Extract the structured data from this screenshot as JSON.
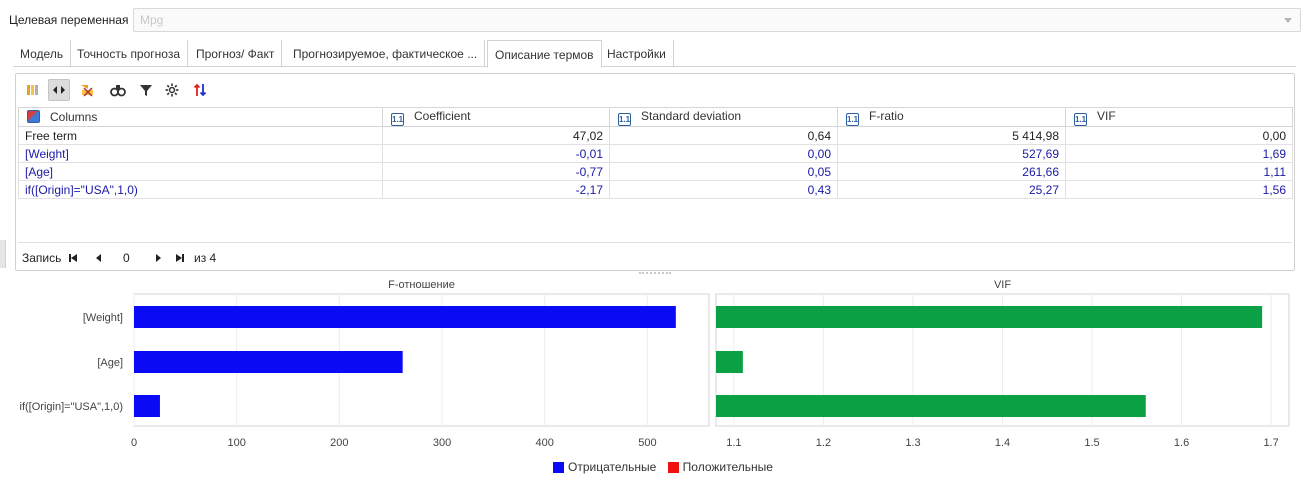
{
  "target": {
    "label": "Целевая переменная",
    "value": "Mpg"
  },
  "tabs": [
    {
      "label": "Модель",
      "active": false
    },
    {
      "label": "Точность прогноза",
      "active": false
    },
    {
      "label": "Прогноз/ Факт",
      "active": false
    },
    {
      "label": "Прогнозируемое, фактическое ...",
      "active": false
    },
    {
      "label": "Описание термов",
      "active": true
    },
    {
      "label": "Настройки",
      "active": false
    }
  ],
  "toolbar": {
    "icons": [
      "columns-icon",
      "fit-width-icon",
      "clear-filter-icon",
      "find-icon",
      "filter-icon",
      "settings-icon",
      "sort-icon"
    ]
  },
  "table": {
    "headers": [
      "Columns",
      "Coefficient",
      "Standard deviation",
      "F-ratio",
      "VIF"
    ],
    "header_badge": "1.1",
    "rows": [
      {
        "name": "Free term",
        "coefficient": "47,02",
        "std": "0,64",
        "f_ratio": "5 414,98",
        "vif": "0,00"
      },
      {
        "name": "[Weight]",
        "coefficient": "-0,01",
        "std": "0,00",
        "f_ratio": "527,69",
        "vif": "1,69"
      },
      {
        "name": "[Age]",
        "coefficient": "-0,77",
        "std": "0,05",
        "f_ratio": "261,66",
        "vif": "1,11"
      },
      {
        "name": "if([Origin]=\"USA\",1,0)",
        "coefficient": "-2,17",
        "std": "0,43",
        "f_ratio": "25,27",
        "vif": "1,56"
      }
    ]
  },
  "pager": {
    "label": "Запись",
    "current": "0",
    "of_label": "из 4"
  },
  "chart_data": [
    {
      "type": "bar",
      "orientation": "horizontal",
      "title": "F-отношение",
      "categories": [
        "[Weight]",
        "[Age]",
        "if([Origin]=\"USA\",1,0)"
      ],
      "values": [
        527.69,
        261.66,
        25.27
      ],
      "xlim": [
        0,
        560
      ],
      "ticks": [
        0,
        100,
        200,
        300,
        400,
        500
      ],
      "color": "#0a0af5",
      "grid": true
    },
    {
      "type": "bar",
      "orientation": "horizontal",
      "title": "VIF",
      "categories": [
        "[Weight]",
        "[Age]",
        "if([Origin]=\"USA\",1,0)"
      ],
      "values": [
        1.69,
        1.11,
        1.56
      ],
      "xlim": [
        1.08,
        1.72
      ],
      "ticks": [
        1.1,
        1.2,
        1.3,
        1.4,
        1.5,
        1.6,
        1.7
      ],
      "color": "#0aa043",
      "grid": true
    }
  ],
  "legend": [
    {
      "label": "Отрицательные",
      "color": "#0a0af5"
    },
    {
      "label": "Положительные",
      "color": "#f01010"
    }
  ]
}
